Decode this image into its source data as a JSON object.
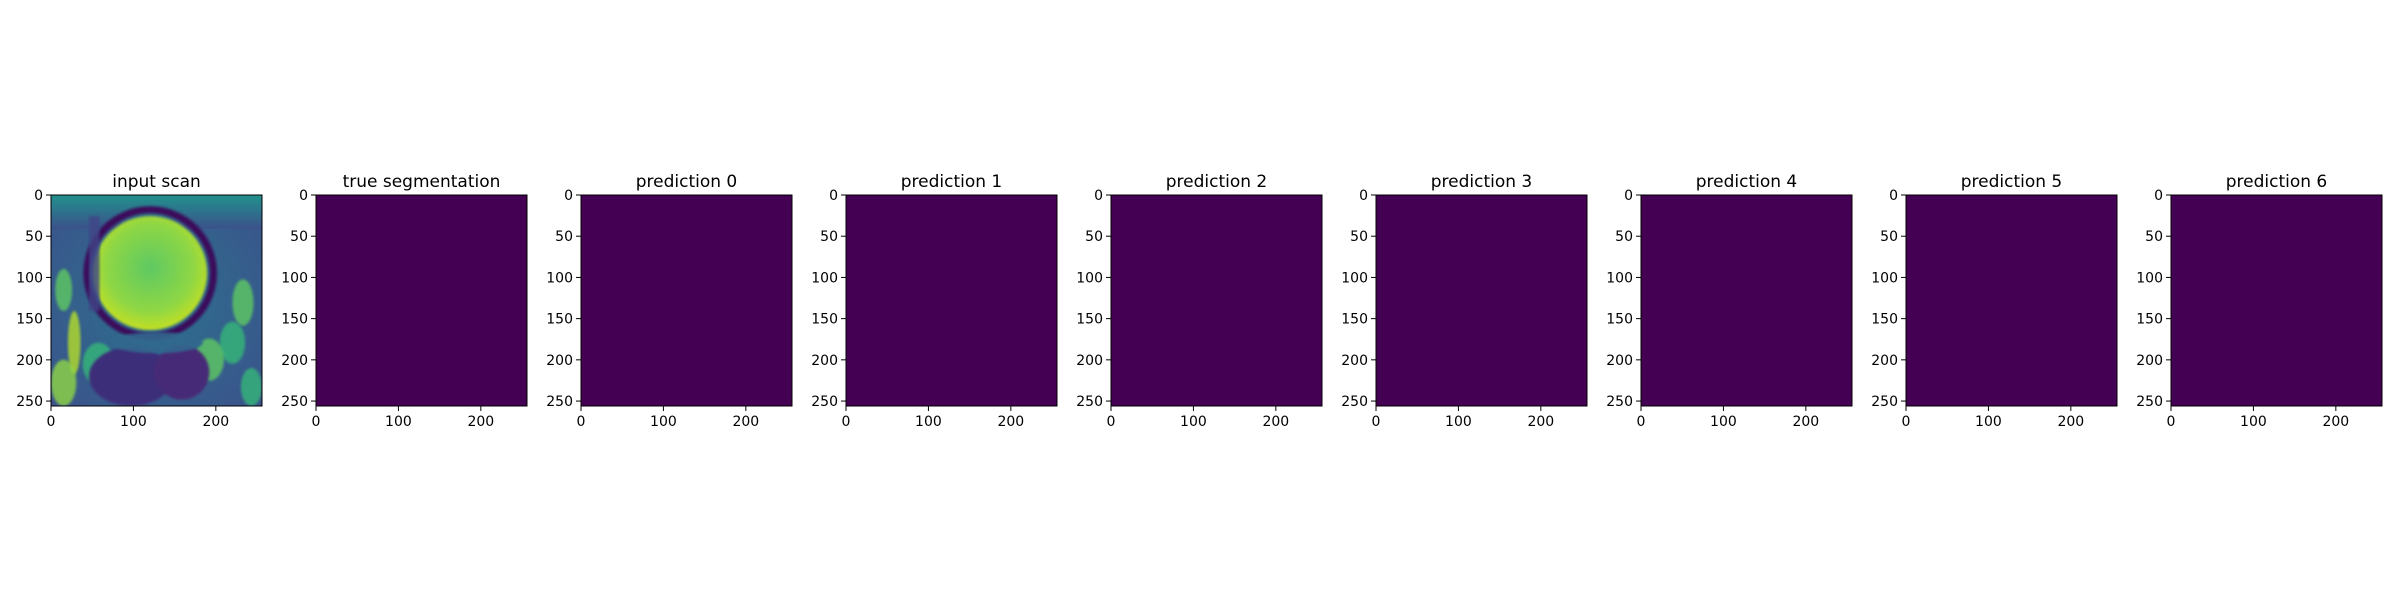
{
  "chart_data": [
    {
      "type": "heatmap",
      "title": "input scan",
      "content": "mri-image",
      "x_ticks": [
        0,
        100,
        200
      ],
      "y_ticks": [
        0,
        50,
        100,
        150,
        200,
        250
      ],
      "xlim": [
        0,
        256
      ],
      "ylim": [
        256,
        0
      ],
      "colormap": "viridis"
    },
    {
      "type": "heatmap",
      "title": "true segmentation",
      "content": "uniform",
      "fill_color": "#440154",
      "x_ticks": [
        0,
        100,
        200
      ],
      "y_ticks": [
        0,
        50,
        100,
        150,
        200,
        250
      ],
      "xlim": [
        0,
        256
      ],
      "ylim": [
        256,
        0
      ]
    },
    {
      "type": "heatmap",
      "title": "prediction 0",
      "content": "uniform",
      "fill_color": "#440154",
      "x_ticks": [
        0,
        100,
        200
      ],
      "y_ticks": [
        0,
        50,
        100,
        150,
        200,
        250
      ],
      "xlim": [
        0,
        256
      ],
      "ylim": [
        256,
        0
      ]
    },
    {
      "type": "heatmap",
      "title": "prediction 1",
      "content": "uniform",
      "fill_color": "#440154",
      "x_ticks": [
        0,
        100,
        200
      ],
      "y_ticks": [
        0,
        50,
        100,
        150,
        200,
        250
      ],
      "xlim": [
        0,
        256
      ],
      "ylim": [
        256,
        0
      ]
    },
    {
      "type": "heatmap",
      "title": "prediction 2",
      "content": "uniform",
      "fill_color": "#440154",
      "x_ticks": [
        0,
        100,
        200
      ],
      "y_ticks": [
        0,
        50,
        100,
        150,
        200,
        250
      ],
      "xlim": [
        0,
        256
      ],
      "ylim": [
        256,
        0
      ]
    },
    {
      "type": "heatmap",
      "title": "prediction 3",
      "content": "uniform",
      "fill_color": "#440154",
      "x_ticks": [
        0,
        100,
        200
      ],
      "y_ticks": [
        0,
        50,
        100,
        150,
        200,
        250
      ],
      "xlim": [
        0,
        256
      ],
      "ylim": [
        256,
        0
      ]
    },
    {
      "type": "heatmap",
      "title": "prediction 4",
      "content": "uniform",
      "fill_color": "#440154",
      "x_ticks": [
        0,
        100,
        200
      ],
      "y_ticks": [
        0,
        50,
        100,
        150,
        200,
        250
      ],
      "xlim": [
        0,
        256
      ],
      "ylim": [
        256,
        0
      ]
    },
    {
      "type": "heatmap",
      "title": "prediction 5",
      "content": "uniform",
      "fill_color": "#440154",
      "x_ticks": [
        0,
        100,
        200
      ],
      "y_ticks": [
        0,
        50,
        100,
        150,
        200,
        250
      ],
      "xlim": [
        0,
        256
      ],
      "ylim": [
        256,
        0
      ]
    },
    {
      "type": "heatmap",
      "title": "prediction 6",
      "content": "uniform",
      "fill_color": "#440154",
      "x_ticks": [
        0,
        100,
        200
      ],
      "y_ticks": [
        0,
        50,
        100,
        150,
        200,
        250
      ],
      "xlim": [
        0,
        256
      ],
      "ylim": [
        256,
        0
      ]
    }
  ]
}
